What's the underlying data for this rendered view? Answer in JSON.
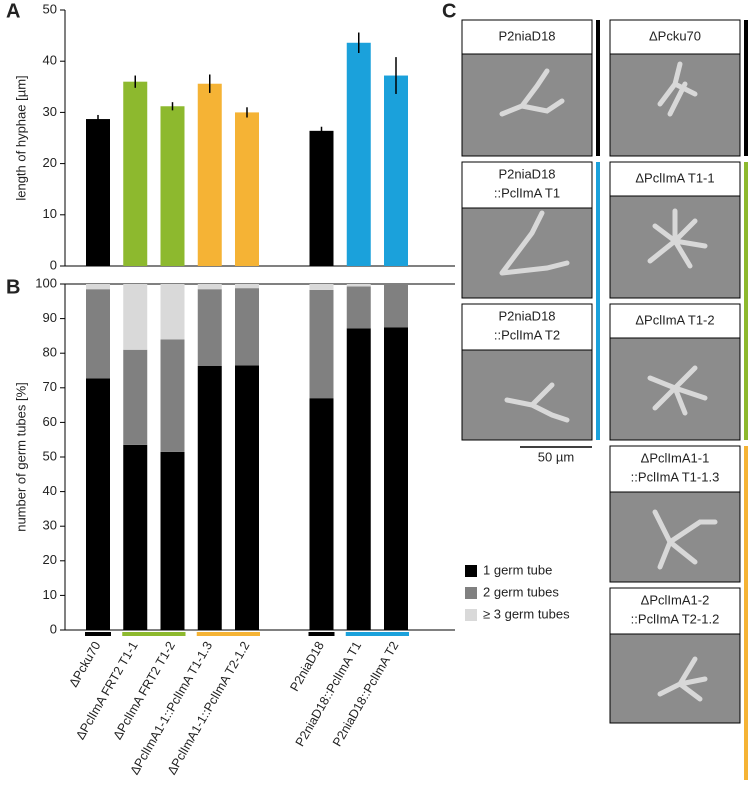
{
  "chart_data": [
    {
      "type": "bar",
      "panel": "A",
      "y_label": "length of hyphae [µm]",
      "values": [
        28.7,
        36,
        31.2,
        35.6,
        30,
        26.4,
        43.6,
        37.2
      ],
      "errors": [
        0.8,
        1.2,
        0.8,
        1.8,
        1,
        0.8,
        2,
        3.6
      ],
      "colors": [
        "#000000",
        "#8db92e",
        "#8db92e",
        "#f5b335",
        "#f5b335",
        "#000000",
        "#1ba1db",
        "#1ba1db"
      ],
      "ylim": [
        0,
        50
      ],
      "yticks": [
        0,
        10,
        20,
        30,
        40,
        50
      ]
    },
    {
      "type": "stacked_bar",
      "panel": "B",
      "y_label": "number of germ tubes [%]",
      "categories": [
        "ΔPcku70",
        "ΔPclImA FRT2 T1-1",
        "ΔPclImA FRT2 T1-2",
        "ΔPclImA1-1::PclImA T1-1.3",
        "ΔPclImA1-1::PclImA T2-1.2",
        "P2niaD18",
        "P2niaD18::PclImA T1",
        "P2niaD18::PclImA T2"
      ],
      "series": [
        {
          "name": "1 germ tube",
          "color": "#000000",
          "values": [
            72.7,
            53.5,
            51.5,
            76.3,
            76.5,
            67,
            87.2,
            87.5
          ]
        },
        {
          "name": "2 germ tubes",
          "color": "#808080",
          "values": [
            25.8,
            27.5,
            32.5,
            22.2,
            22.3,
            31.3,
            12.1,
            12.5
          ]
        },
        {
          "name": "≥ 3 germ tubes",
          "color": "#d9d9d9",
          "values": [
            1.5,
            19,
            16,
            1.5,
            1.2,
            1.7,
            0.7,
            0
          ]
        }
      ],
      "ylim": [
        0,
        100
      ],
      "yticks": [
        0,
        10,
        20,
        30,
        40,
        50,
        60,
        70,
        80,
        90,
        100
      ]
    }
  ],
  "panel_c": {
    "panel": "C",
    "scale_bar": "50 µm",
    "images": [
      {
        "label": [
          "P2niaD18"
        ]
      },
      {
        "label": [
          "P2niaD18",
          "::PclImA T1"
        ]
      },
      {
        "label": [
          "P2niaD18",
          "::PclImA T2"
        ]
      },
      {
        "label": [
          "ΔPcku70"
        ]
      },
      {
        "label": [
          "ΔPclImA T1-1"
        ]
      },
      {
        "label": [
          "ΔPclImA T1-2"
        ]
      },
      {
        "label": [
          "ΔPclImA1-1",
          "::PclImA T1-1.3"
        ]
      },
      {
        "label": [
          "ΔPclImA1-2",
          "::PclImA T2-1.2"
        ]
      }
    ]
  }
}
